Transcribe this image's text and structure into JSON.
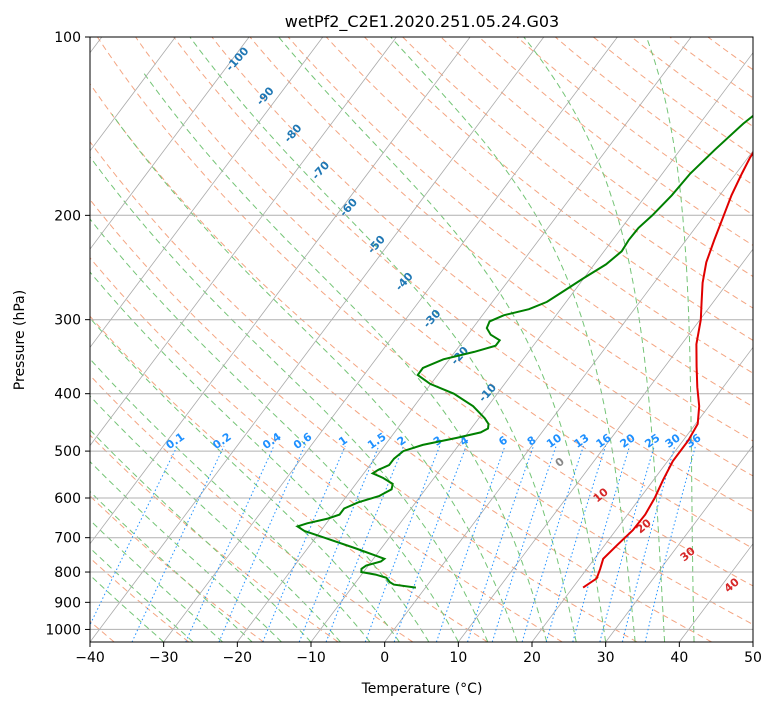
{
  "chart_data": {
    "type": "line",
    "title": "wetPf2_C2E1.2020.251.05.24.G03",
    "xlabel": "Temperature (°C)",
    "ylabel": "Pressure (hPa)",
    "xlim": [
      -40,
      50
    ],
    "ylim": [
      1050,
      100
    ],
    "y_scale": "log",
    "grid": true,
    "x_ticks": [
      "−40",
      "−30",
      "−20",
      "−10",
      "0",
      "10",
      "20",
      "30",
      "40",
      "50"
    ],
    "y_ticks": [
      "100",
      "200",
      "300",
      "400",
      "500",
      "600",
      "700",
      "800",
      "900",
      "1000"
    ],
    "series": [
      {
        "color": "#e00000",
        "points": [
          [
            21.4,
            850
          ],
          [
            22.3,
            820
          ],
          [
            21.8,
            790
          ],
          [
            21.2,
            760
          ],
          [
            21.7,
            720
          ],
          [
            22.3,
            680
          ],
          [
            22.4,
            640
          ],
          [
            22.0,
            600
          ],
          [
            21.3,
            560
          ],
          [
            20.7,
            520
          ],
          [
            20.7,
            480
          ],
          [
            20.3,
            450
          ],
          [
            18.7,
            420
          ],
          [
            16.5,
            390
          ],
          [
            14.3,
            360
          ],
          [
            12.0,
            330
          ],
          [
            10.1,
            300
          ],
          [
            8.4,
            280
          ],
          [
            6.6,
            260
          ],
          [
            5.0,
            240
          ],
          [
            3.8,
            220
          ],
          [
            2.6,
            200
          ],
          [
            1.6,
            185
          ],
          [
            0.8,
            170
          ],
          [
            0.3,
            160
          ],
          [
            0.0,
            150
          ],
          [
            -0.1,
            140
          ],
          [
            0.3,
            132
          ],
          [
            1.3,
            127
          ],
          [
            2.5,
            122
          ],
          [
            3.6,
            117
          ],
          [
            4.6,
            112
          ],
          [
            5.5,
            107
          ],
          [
            6.3,
            103
          ],
          [
            6.9,
            100
          ]
        ]
      },
      {
        "color": "#008000",
        "points": [
          [
            -1.3,
            850
          ],
          [
            -4.6,
            840
          ],
          [
            -5.4,
            832
          ],
          [
            -6.3,
            818
          ],
          [
            -8.1,
            808
          ],
          [
            -10.3,
            800
          ],
          [
            -10.6,
            790
          ],
          [
            -10.3,
            780
          ],
          [
            -8.7,
            768
          ],
          [
            -8.5,
            760
          ],
          [
            -9.8,
            752
          ],
          [
            -13.4,
            730
          ],
          [
            -18.8,
            700
          ],
          [
            -22.2,
            682
          ],
          [
            -23.6,
            670
          ],
          [
            -22.6,
            662
          ],
          [
            -20.3,
            650
          ],
          [
            -19.1,
            640
          ],
          [
            -19.1,
            625
          ],
          [
            -17.8,
            610
          ],
          [
            -15.6,
            595
          ],
          [
            -14.6,
            580
          ],
          [
            -15.0,
            568
          ],
          [
            -16.9,
            555
          ],
          [
            -18.8,
            545
          ],
          [
            -18.4,
            538
          ],
          [
            -17.4,
            528
          ],
          [
            -17.4,
            515
          ],
          [
            -16.9,
            500
          ],
          [
            -14.9,
            488
          ],
          [
            -11.0,
            475
          ],
          [
            -8.3,
            465
          ],
          [
            -7.7,
            458
          ],
          [
            -8.1,
            450
          ],
          [
            -9.2,
            440
          ],
          [
            -12.0,
            420
          ],
          [
            -15.9,
            400
          ],
          [
            -20.1,
            385
          ],
          [
            -22.7,
            372
          ],
          [
            -22.7,
            362
          ],
          [
            -20.8,
            350
          ],
          [
            -17.4,
            340
          ],
          [
            -15.1,
            332
          ],
          [
            -15.1,
            325
          ],
          [
            -16.9,
            318
          ],
          [
            -18.1,
            310
          ],
          [
            -18.4,
            302
          ],
          [
            -17.1,
            295
          ],
          [
            -14.3,
            288
          ],
          [
            -12.6,
            280
          ],
          [
            -11.6,
            270
          ],
          [
            -10.0,
            255
          ],
          [
            -8.4,
            242
          ],
          [
            -7.6,
            230
          ],
          [
            -7.8,
            220
          ],
          [
            -7.7,
            210
          ],
          [
            -7.1,
            200
          ],
          [
            -6.5,
            185
          ],
          [
            -6.2,
            170
          ],
          [
            -5.3,
            155
          ],
          [
            -4.1,
            140
          ],
          [
            -2.1,
            125
          ],
          [
            0.4,
            115
          ],
          [
            2.2,
            108
          ],
          [
            3.5,
            103
          ],
          [
            4.1,
            100
          ]
        ]
      }
    ],
    "mixing_ratio_labels": [
      "0.1",
      "0.2",
      "0.4",
      "0.6",
      "1",
      "1.5",
      "2",
      "3",
      "4",
      "6",
      "8",
      "10",
      "13",
      "16",
      "20",
      "25",
      "30",
      "36"
    ],
    "dry_adiabat_labels": [
      "-100",
      "-90",
      "-80",
      "-70",
      "-60",
      "-50",
      "-40",
      "-30",
      "-20",
      "-10"
    ],
    "moist_adiabat_labels": [
      "0",
      "10",
      "20",
      "30",
      "40"
    ],
    "colors": {
      "temperature": "#e00000",
      "dewpoint": "#008000",
      "isotherm": "#aaaaaa",
      "dry_adiabat": "#f4a582",
      "moist_adiabat": "#74c476",
      "mixing_ratio": "#1e90ff",
      "grid": "#b0b0b0"
    }
  }
}
